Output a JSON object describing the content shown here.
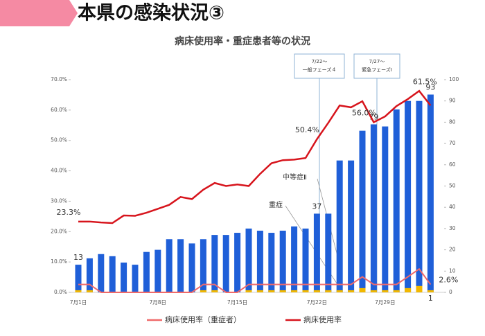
{
  "header": {
    "title": "本県の感染状況③"
  },
  "chart_data": {
    "type": "combo",
    "title": "病床使用率・重症患者等の状況",
    "categories": [
      "7月1日",
      null,
      null,
      null,
      null,
      null,
      null,
      "7月8日",
      null,
      null,
      null,
      null,
      null,
      null,
      "7月15日",
      null,
      null,
      null,
      null,
      null,
      null,
      "7月22日",
      null,
      null,
      null,
      null,
      null,
      "7月29日",
      null,
      null,
      null,
      null
    ],
    "series": [
      {
        "name": "中等症Ⅱ",
        "type": "bar",
        "axis": "y2",
        "color": "#1f5fd8",
        "values": [
          13,
          16,
          18,
          17,
          14,
          13,
          19,
          20,
          25,
          25,
          23,
          25,
          27,
          27,
          28,
          30,
          29,
          28,
          29,
          31,
          30,
          37,
          37,
          62,
          62,
          76,
          79,
          78,
          86,
          90,
          90,
          93
        ],
        "value_labels": [
          "13",
          null,
          null,
          null,
          null,
          null,
          null,
          null,
          null,
          null,
          null,
          null,
          null,
          null,
          null,
          null,
          null,
          null,
          null,
          null,
          null,
          "37",
          null,
          null,
          null,
          null,
          "79",
          null,
          null,
          null,
          null,
          "93"
        ]
      },
      {
        "name": "重症",
        "type": "bar",
        "axis": "y2",
        "color": "#f2b800",
        "values": [
          1,
          1,
          0,
          0,
          0,
          0,
          0,
          0,
          0,
          0,
          0,
          1,
          1,
          0,
          0,
          1,
          1,
          1,
          1,
          1,
          1,
          1,
          1,
          1,
          1,
          2,
          1,
          1,
          1,
          2,
          3,
          1
        ],
        "value_labels": [
          null,
          null,
          null,
          null,
          null,
          null,
          null,
          null,
          null,
          null,
          null,
          null,
          null,
          null,
          null,
          null,
          null,
          null,
          null,
          null,
          null,
          null,
          null,
          null,
          null,
          null,
          null,
          null,
          null,
          null,
          null,
          "1"
        ]
      },
      {
        "name": "病床使用率（重症者）",
        "type": "line",
        "color": "#f06a6a",
        "values": [
          2.6,
          2.6,
          0,
          0,
          0,
          0,
          0,
          0,
          0,
          0,
          0,
          2.6,
          2.6,
          0,
          0,
          2.6,
          2.6,
          2.6,
          2.6,
          2.6,
          2.6,
          2.6,
          2.6,
          2.6,
          2.6,
          5.1,
          2.6,
          2.6,
          2.6,
          5.1,
          7.7,
          2.6
        ],
        "value_labels": [
          null,
          null,
          null,
          null,
          null,
          null,
          null,
          null,
          null,
          null,
          null,
          null,
          null,
          null,
          null,
          null,
          null,
          null,
          null,
          null,
          null,
          null,
          null,
          null,
          null,
          null,
          null,
          null,
          null,
          null,
          null,
          "2.6%"
        ]
      },
      {
        "name": "病床使用率",
        "type": "line",
        "color": "#d7141c",
        "values": [
          23.3,
          23.3,
          23.0,
          22.8,
          25.3,
          25.2,
          26.2,
          27.5,
          28.8,
          31.4,
          30.7,
          33.8,
          36.0,
          35.0,
          35.5,
          35.0,
          39.0,
          42.5,
          43.5,
          43.7,
          44.2,
          50.4,
          55.8,
          61.5,
          60.9,
          62.9,
          56.0,
          57.9,
          61.3,
          63.6,
          66.3,
          61.5
        ],
        "value_labels": [
          "23.3%",
          null,
          null,
          null,
          null,
          null,
          null,
          null,
          null,
          null,
          null,
          null,
          null,
          null,
          null,
          null,
          null,
          null,
          null,
          null,
          null,
          "50.4%",
          null,
          null,
          null,
          null,
          "56.0%",
          null,
          null,
          null,
          null,
          "61.5%"
        ]
      }
    ],
    "ylim": [
      0,
      70
    ],
    "yticks": [
      {
        "value": 0,
        "label": "0.0%"
      },
      {
        "value": 10,
        "label": "10.0%"
      },
      {
        "value": 20,
        "label": "20.0%"
      },
      {
        "value": 30,
        "label": "30.0%"
      },
      {
        "value": 40,
        "label": "40.0%"
      },
      {
        "value": 50,
        "label": "50.0%"
      },
      {
        "value": 60,
        "label": "60.0%"
      },
      {
        "value": 70,
        "label": "70.0%"
      }
    ],
    "y2lim": [
      0,
      100
    ],
    "y2ticks": [
      0,
      10,
      20,
      30,
      40,
      50,
      60,
      70,
      80,
      90,
      100
    ],
    "annotations": [
      {
        "lines": [
          "7/22～",
          "一般フェーズ４"
        ]
      },
      {
        "lines": [
          "7/27～",
          "緊急フェーズⅠ"
        ]
      },
      {
        "text": "中等症Ⅱ"
      },
      {
        "text": "重症"
      }
    ],
    "legend": "bottom",
    "grid": false
  }
}
